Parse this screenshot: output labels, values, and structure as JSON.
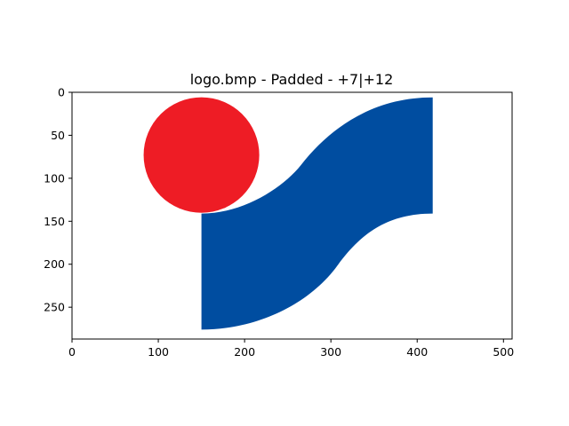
{
  "chart_data": {
    "type": "image",
    "title": "logo.bmp - Padded - +7|+12",
    "xlabel": "",
    "ylabel": "",
    "xlim": [
      0,
      510
    ],
    "ylim": [
      287,
      0
    ],
    "x_ticks": [
      0,
      100,
      200,
      300,
      400,
      500
    ],
    "y_ticks": [
      0,
      50,
      100,
      150,
      200,
      250
    ],
    "image": {
      "red_circle": {
        "cx": 150,
        "cy": 73,
        "r": 67,
        "color": "#ee1c25"
      },
      "blue_band": {
        "color": "#004da0",
        "left_x": 150,
        "right_x": 418,
        "top_right_y": 6,
        "bottom_right_y": 141,
        "top_left_y": 141,
        "bottom_left_y": 276
      }
    },
    "grid": false,
    "legend": "none"
  }
}
